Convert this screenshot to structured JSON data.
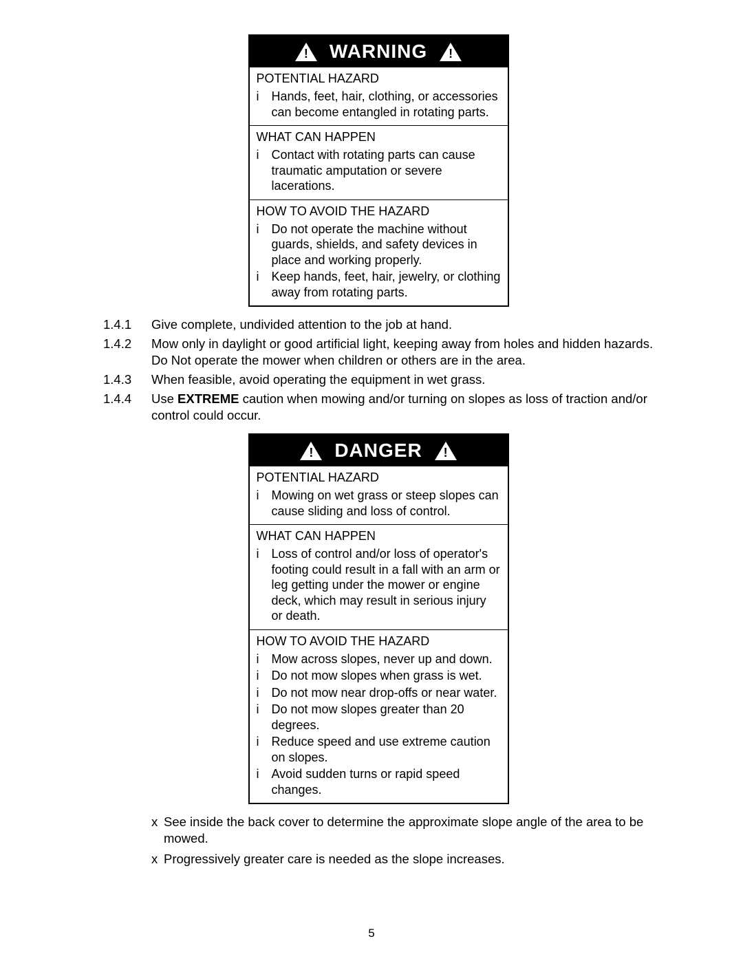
{
  "page_number": "5",
  "box1": {
    "header": "WARNING",
    "sections": [
      {
        "title": "POTENTIAL HAZARD",
        "bullets": [
          "Hands, feet, hair, clothing, or accessories can become entangled in rotating parts."
        ]
      },
      {
        "title": "WHAT CAN HAPPEN",
        "bullets": [
          "Contact with rotating parts can cause traumatic amputation or severe lacerations."
        ]
      },
      {
        "title": "HOW TO AVOID THE HAZARD",
        "bullets": [
          "Do not operate the machine without guards, shields, and safety devices in place and working properly.",
          "Keep hands, feet, hair, jewelry, or clothing away from rotating parts."
        ]
      }
    ]
  },
  "numbered": {
    "items": [
      {
        "num": "1.4.1",
        "text": "Give complete, undivided attention to the job at hand."
      },
      {
        "num": "1.4.2",
        "text": "Mow only in daylight or good artificial light, keeping away from holes and hidden hazards.  Do Not  operate the mower when children or others are in the area."
      },
      {
        "num": "1.4.3",
        "text": "When feasible, avoid operating the equipment in wet grass."
      },
      {
        "num": "1.4.4",
        "pre": "Use ",
        "bold": "EXTREME",
        "post": " caution when mowing and/or turning on slopes as loss of traction and/or control could occur."
      }
    ]
  },
  "box2": {
    "header": "DANGER",
    "sections": [
      {
        "title": "POTENTIAL HAZARD",
        "bullets": [
          "Mowing on wet grass or steep slopes can cause sliding and loss of control."
        ]
      },
      {
        "title": "WHAT CAN HAPPEN",
        "bullets": [
          "Loss of control and/or loss of operator's footing could result in a fall with an arm or leg getting under the mower or engine deck, which may result in serious injury or death."
        ]
      },
      {
        "title": "HOW TO AVOID THE HAZARD",
        "bullets": [
          "Mow across slopes, never up and down.",
          "Do not mow slopes when grass is wet.",
          "Do not mow near drop-offs or near water.",
          "Do not mow slopes greater than 20 degrees.",
          "Reduce speed and use extreme caution on slopes.",
          "Avoid sudden turns or rapid speed changes."
        ]
      }
    ]
  },
  "xlist": {
    "items": [
      "See inside the back cover to determine the approximate slope angle of the area to be mowed.",
      "Progressively greater care is needed as the slope increases."
    ]
  },
  "marks": {
    "bullet": "i",
    "x": "x"
  },
  "colors": {
    "bg": "#ffffff",
    "fg": "#000000"
  }
}
